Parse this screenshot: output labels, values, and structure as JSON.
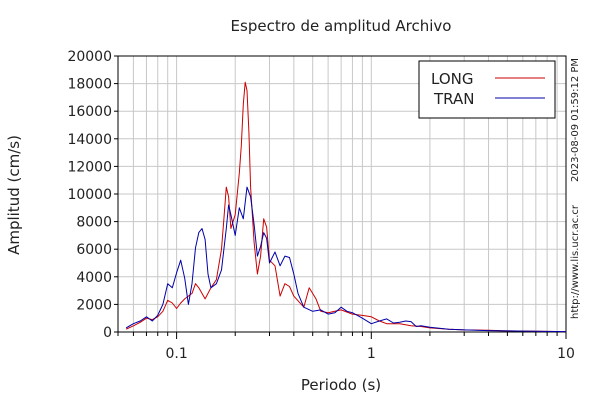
{
  "chart_data": {
    "type": "line",
    "title": "Espectro de amplitud Archivo",
    "xlabel": "Periodo (s)",
    "ylabel": "Amplitud (cm/s)",
    "x_scale": "log",
    "xlim": [
      0.05,
      10
    ],
    "ylim": [
      0,
      20000
    ],
    "x_ticks": [
      {
        "value": 0.1,
        "label": "0.1"
      },
      {
        "value": 1,
        "label": "1"
      },
      {
        "value": 10,
        "label": "10"
      }
    ],
    "y_ticks": [
      {
        "value": 0,
        "label": "0"
      },
      {
        "value": 2000,
        "label": "2000"
      },
      {
        "value": 4000,
        "label": "4000"
      },
      {
        "value": 6000,
        "label": "6000"
      },
      {
        "value": 8000,
        "label": "8000"
      },
      {
        "value": 10000,
        "label": "10000"
      },
      {
        "value": 12000,
        "label": "12000"
      },
      {
        "value": 14000,
        "label": "14000"
      },
      {
        "value": 16000,
        "label": "16000"
      },
      {
        "value": 18000,
        "label": "18000"
      },
      {
        "value": 20000,
        "label": "20000"
      }
    ],
    "grid": true,
    "legend_position": "top-right",
    "side_text": {
      "timestamp": "2023-08-09 01:59:12 PM",
      "url": "http://www.lis.ucr.ac.cr"
    },
    "series": [
      {
        "name": "LONG",
        "color": "#cc0000",
        "points": [
          [
            0.055,
            200
          ],
          [
            0.06,
            450
          ],
          [
            0.065,
            700
          ],
          [
            0.07,
            1000
          ],
          [
            0.075,
            900
          ],
          [
            0.08,
            1100
          ],
          [
            0.085,
            1500
          ],
          [
            0.09,
            2300
          ],
          [
            0.095,
            2100
          ],
          [
            0.1,
            1700
          ],
          [
            0.105,
            2100
          ],
          [
            0.11,
            2400
          ],
          [
            0.12,
            2800
          ],
          [
            0.125,
            3500
          ],
          [
            0.13,
            3200
          ],
          [
            0.14,
            2400
          ],
          [
            0.15,
            3200
          ],
          [
            0.16,
            3800
          ],
          [
            0.17,
            6000
          ],
          [
            0.175,
            8200
          ],
          [
            0.18,
            10500
          ],
          [
            0.185,
            9800
          ],
          [
            0.19,
            7500
          ],
          [
            0.2,
            8500
          ],
          [
            0.21,
            11500
          ],
          [
            0.215,
            13500
          ],
          [
            0.22,
            16500
          ],
          [
            0.225,
            18100
          ],
          [
            0.23,
            17500
          ],
          [
            0.235,
            14500
          ],
          [
            0.24,
            10500
          ],
          [
            0.25,
            6500
          ],
          [
            0.26,
            4200
          ],
          [
            0.27,
            5500
          ],
          [
            0.28,
            8200
          ],
          [
            0.29,
            7600
          ],
          [
            0.3,
            5200
          ],
          [
            0.32,
            4800
          ],
          [
            0.34,
            2600
          ],
          [
            0.36,
            3500
          ],
          [
            0.38,
            3300
          ],
          [
            0.4,
            2600
          ],
          [
            0.45,
            1800
          ],
          [
            0.48,
            3200
          ],
          [
            0.52,
            2400
          ],
          [
            0.55,
            1500
          ],
          [
            0.6,
            1400
          ],
          [
            0.7,
            1600
          ],
          [
            0.8,
            1300
          ],
          [
            0.9,
            1200
          ],
          [
            1.0,
            1100
          ],
          [
            1.1,
            800
          ],
          [
            1.2,
            600
          ],
          [
            1.4,
            600
          ],
          [
            1.6,
            450
          ],
          [
            1.8,
            400
          ],
          [
            2.0,
            300
          ],
          [
            2.5,
            200
          ],
          [
            3.0,
            150
          ],
          [
            4.0,
            120
          ],
          [
            5.0,
            80
          ],
          [
            7.0,
            50
          ],
          [
            10.0,
            30
          ]
        ]
      },
      {
        "name": "TRAN",
        "color": "#0000aa",
        "points": [
          [
            0.055,
            300
          ],
          [
            0.06,
            600
          ],
          [
            0.065,
            800
          ],
          [
            0.07,
            1100
          ],
          [
            0.075,
            800
          ],
          [
            0.08,
            1200
          ],
          [
            0.085,
            2000
          ],
          [
            0.09,
            3500
          ],
          [
            0.095,
            3200
          ],
          [
            0.1,
            4300
          ],
          [
            0.105,
            5200
          ],
          [
            0.11,
            3900
          ],
          [
            0.115,
            2000
          ],
          [
            0.12,
            3500
          ],
          [
            0.125,
            6100
          ],
          [
            0.13,
            7200
          ],
          [
            0.135,
            7500
          ],
          [
            0.14,
            6700
          ],
          [
            0.145,
            4200
          ],
          [
            0.15,
            3200
          ],
          [
            0.16,
            3500
          ],
          [
            0.17,
            4500
          ],
          [
            0.18,
            7500
          ],
          [
            0.185,
            9200
          ],
          [
            0.19,
            8500
          ],
          [
            0.2,
            7000
          ],
          [
            0.21,
            9000
          ],
          [
            0.22,
            8200
          ],
          [
            0.23,
            10500
          ],
          [
            0.24,
            9800
          ],
          [
            0.25,
            7800
          ],
          [
            0.26,
            5500
          ],
          [
            0.27,
            6200
          ],
          [
            0.28,
            7200
          ],
          [
            0.29,
            6800
          ],
          [
            0.3,
            5000
          ],
          [
            0.32,
            5800
          ],
          [
            0.34,
            4800
          ],
          [
            0.36,
            5500
          ],
          [
            0.38,
            5400
          ],
          [
            0.4,
            4200
          ],
          [
            0.42,
            2800
          ],
          [
            0.45,
            1800
          ],
          [
            0.5,
            1500
          ],
          [
            0.55,
            1600
          ],
          [
            0.6,
            1300
          ],
          [
            0.65,
            1400
          ],
          [
            0.7,
            1800
          ],
          [
            0.75,
            1500
          ],
          [
            0.8,
            1400
          ],
          [
            0.9,
            1000
          ],
          [
            1.0,
            600
          ],
          [
            1.1,
            800
          ],
          [
            1.2,
            950
          ],
          [
            1.3,
            650
          ],
          [
            1.4,
            700
          ],
          [
            1.5,
            800
          ],
          [
            1.6,
            750
          ],
          [
            1.7,
            400
          ],
          [
            1.8,
            450
          ],
          [
            2.0,
            350
          ],
          [
            2.5,
            200
          ],
          [
            3.0,
            150
          ],
          [
            4.0,
            100
          ],
          [
            5.0,
            80
          ],
          [
            7.0,
            50
          ],
          [
            10.0,
            30
          ]
        ]
      }
    ]
  }
}
